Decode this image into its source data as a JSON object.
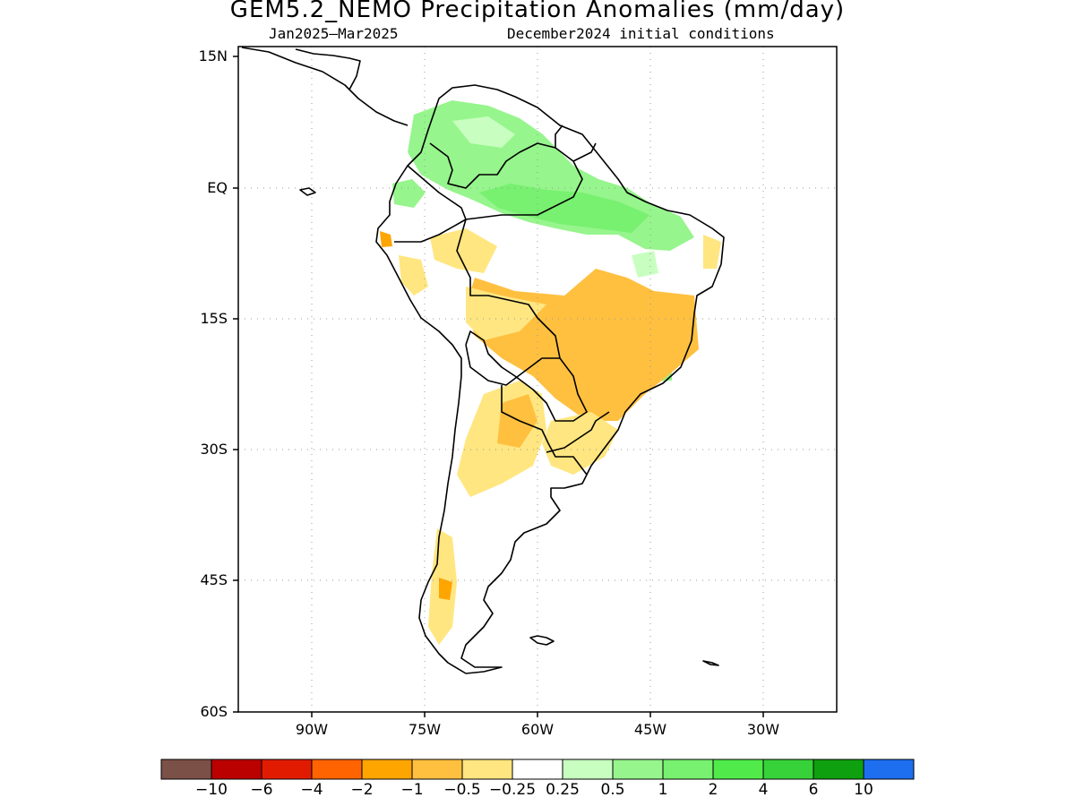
{
  "title": "GEM5.2_NEMO Precipitation Anomalies (mm/day)",
  "subtitle_left": "Jan2025–Mar2025",
  "subtitle_right": "December2024 initial conditions",
  "lat_labels": [
    "15N",
    "EQ",
    "15S",
    "30S",
    "45S",
    "60S"
  ],
  "lon_labels": [
    "90W",
    "75W",
    "60W",
    "45W",
    "30W"
  ],
  "colorbar": {
    "colors": [
      "#7b5047",
      "#bb0000",
      "#e11b00",
      "#ff6400",
      "#ffa500",
      "#ffc040",
      "#ffe680",
      "#ffffff",
      "#c8ffc0",
      "#96f58c",
      "#78f070",
      "#50eb4a",
      "#37d23a",
      "#0fa00f",
      "#1e6ef0"
    ],
    "labels": [
      "−10",
      "−6",
      "−4",
      "−2",
      "−1",
      "−0.5",
      "−0.25",
      "0.25",
      "0.5",
      "1",
      "2",
      "4",
      "6",
      "10"
    ]
  },
  "map_colors": {
    "land_outline": "#000000",
    "grid": "#9a9a9a"
  }
}
